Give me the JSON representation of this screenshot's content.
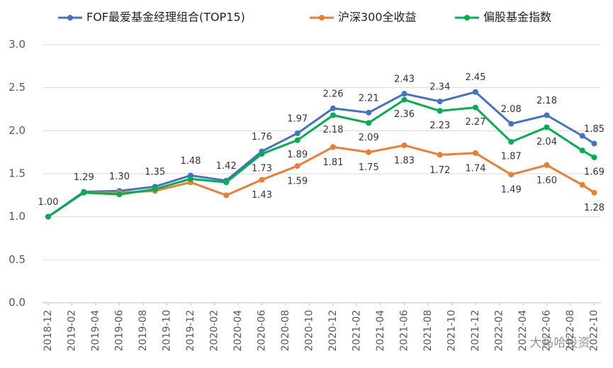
{
  "chart_data": {
    "type": "line",
    "ylim": [
      0,
      3
    ],
    "yticks": [
      {
        "value": 0,
        "label": "0.0"
      },
      {
        "value": 0.5,
        "label": "0.5"
      },
      {
        "value": 1,
        "label": "1.0"
      },
      {
        "value": 1.5,
        "label": "1.5"
      },
      {
        "value": 2,
        "label": "2.0"
      },
      {
        "value": 2.5,
        "label": "2.5"
      },
      {
        "value": 3,
        "label": "3.0"
      }
    ],
    "grid": true,
    "xticks": [
      "2018-12",
      "2019-02",
      "2019-04",
      "2019-06",
      "2019-08",
      "2019-10",
      "2019-12",
      "2020-02",
      "2020-04",
      "2020-06",
      "2020-08",
      "2020-10",
      "2020-12",
      "2021-02",
      "2021-04",
      "2021-06",
      "2021-08",
      "2021-10",
      "2021-12",
      "2022-02",
      "2022-04",
      "2022-06",
      "2022-08",
      "2022-10"
    ],
    "x": [
      "2018-12",
      "2019-03",
      "2019-06",
      "2019-09",
      "2019-12",
      "2020-03",
      "2020-06",
      "2020-09",
      "2020-12",
      "2021-03",
      "2021-06",
      "2021-09",
      "2021-12",
      "2022-03",
      "2022-06",
      "2022-09",
      "2022-10"
    ],
    "legend": "top",
    "series": [
      {
        "name": "FOF最爱基金经理组合(TOP15)",
        "color": "#4472c4",
        "values": [
          1.0,
          1.29,
          1.3,
          1.35,
          1.48,
          1.42,
          1.76,
          1.97,
          2.26,
          2.21,
          2.43,
          2.34,
          2.45,
          2.08,
          2.18,
          1.94,
          1.85
        ],
        "value_labels": [
          "1.00",
          "1.29",
          "1.30",
          "1.35",
          "1.48",
          "1.42",
          "1.76",
          "1.97",
          "2.26",
          "2.21",
          "2.43",
          "2.34",
          "2.45",
          "2.08",
          "2.18",
          null,
          "1.85"
        ]
      },
      {
        "name": "沪深300全收益",
        "color": "#ed7d31",
        "values": [
          1.0,
          1.28,
          1.28,
          1.3,
          1.4,
          1.25,
          1.43,
          1.59,
          1.81,
          1.75,
          1.83,
          1.72,
          1.74,
          1.49,
          1.6,
          1.37,
          1.28
        ],
        "value_labels": [
          null,
          null,
          null,
          null,
          null,
          null,
          "1.43",
          "1.59",
          "1.81",
          "1.75",
          "1.83",
          "1.72",
          "1.74",
          "1.49",
          "1.60",
          null,
          "1.28"
        ]
      },
      {
        "name": "偏股基金指数",
        "color": "#00b050",
        "values": [
          1.0,
          1.28,
          1.26,
          1.32,
          1.44,
          1.4,
          1.73,
          1.89,
          2.18,
          2.09,
          2.36,
          2.23,
          2.27,
          1.87,
          2.04,
          1.77,
          1.69
        ],
        "value_labels": [
          null,
          null,
          null,
          null,
          null,
          null,
          "1.73",
          "1.89",
          "2.18",
          "2.09",
          "2.36",
          "2.23",
          "2.27",
          "1.87",
          "2.04",
          null,
          "1.69"
        ]
      }
    ],
    "watermark": "大马哈投资"
  }
}
